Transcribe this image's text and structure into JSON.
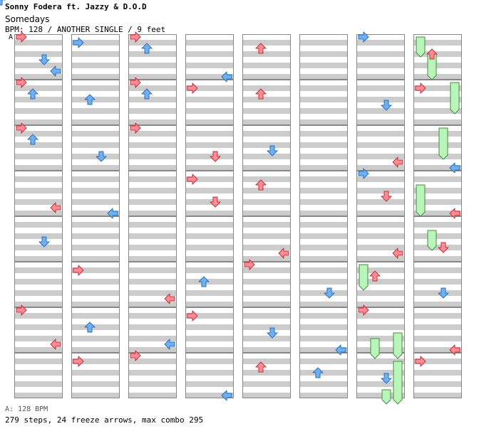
{
  "header": {
    "artist": "Sonny Fodera ft. Jazzy & D.O.D",
    "title": "Somedays",
    "info": "BPM: 128 / ANOTHER SINGLE / 9 feet"
  },
  "bpm_marker": "A",
  "footer": {
    "bpm_legend": "A: 128 BPM",
    "stats": "279 steps, 24 freeze arrows, max combo 295"
  },
  "colors": {
    "page_bg": "#ffffff",
    "row_stripe": "#cccccc",
    "border": "#888888",
    "quarter_note": "#ff8c94",
    "eighth_note": "#6fb1f7",
    "sixteenth_note": "#f3a8f3",
    "freeze": "#b8f5b8"
  },
  "chart": {
    "lanes": [
      "left",
      "down",
      "up",
      "right"
    ],
    "measures_per_column": 8,
    "columns": 8,
    "notes": [
      [
        5,
        0,
        4,
        "r"
      ],
      [
        5,
        1,
        7,
        "r"
      ],
      [
        5,
        2,
        9,
        "r"
      ],
      [
        5,
        3,
        5,
        "b"
      ],
      [
        5,
        4,
        5,
        "b"
      ],
      [
        5,
        5,
        2,
        "b"
      ],
      [
        5,
        6,
        3,
        "b"
      ],
      [
        5,
        7,
        1,
        "b"
      ],
      [
        6,
        0,
        0,
        "b"
      ],
      [
        6,
        1,
        2,
        "b"
      ],
      [
        6,
        2,
        3,
        "r"
      ],
      [
        6,
        3,
        0,
        "b"
      ],
      [
        6,
        3,
        2,
        "r"
      ],
      [
        6,
        4,
        3,
        "r"
      ],
      [
        6,
        5,
        1,
        "r"
      ],
      [
        6,
        6,
        0,
        "r"
      ],
      [
        6,
        7,
        2,
        "b"
      ],
      [
        7,
        0,
        1,
        "r"
      ],
      [
        7,
        1,
        0,
        "r"
      ],
      [
        7,
        2,
        3,
        "b"
      ],
      [
        7,
        3,
        3,
        "r"
      ],
      [
        7,
        4,
        2,
        "r"
      ],
      [
        7,
        5,
        2,
        "b"
      ],
      [
        7,
        6,
        3,
        "r"
      ],
      [
        7,
        7,
        0,
        "r"
      ],
      [
        0,
        0,
        0,
        "r"
      ],
      [
        0,
        0,
        2,
        "b"
      ],
      [
        0,
        1,
        0,
        "r"
      ],
      [
        0,
        1,
        1,
        "b"
      ],
      [
        0,
        2,
        0,
        "r"
      ],
      [
        0,
        3,
        3,
        "r"
      ],
      [
        0,
        6,
        0,
        "r"
      ],
      [
        1,
        0,
        0,
        "b"
      ],
      [
        1,
        1,
        1,
        "b"
      ],
      [
        1,
        2,
        2,
        "b"
      ],
      [
        1,
        3,
        3,
        "b"
      ],
      [
        1,
        5,
        0,
        "r"
      ],
      [
        1,
        6,
        1,
        "b"
      ],
      [
        1,
        7,
        0,
        "r"
      ],
      [
        2,
        0,
        0,
        "r"
      ],
      [
        2,
        0,
        1,
        "b"
      ],
      [
        2,
        1,
        0,
        "r"
      ],
      [
        2,
        1,
        1,
        "b"
      ],
      [
        2,
        2,
        0,
        "r"
      ],
      [
        2,
        5,
        3,
        "r"
      ],
      [
        2,
        6,
        3,
        "b"
      ],
      [
        2,
        7,
        0,
        "r"
      ],
      [
        3,
        0,
        3,
        "b"
      ],
      [
        3,
        1,
        0,
        "r"
      ],
      [
        3,
        2,
        2,
        "r"
      ],
      [
        3,
        3,
        0,
        "r"
      ],
      [
        3,
        3,
        2,
        "r"
      ],
      [
        3,
        5,
        1,
        "b"
      ],
      [
        3,
        6,
        0,
        "r"
      ],
      [
        3,
        7,
        3,
        "b"
      ],
      [
        4,
        0,
        1,
        "r"
      ],
      [
        4,
        1,
        1,
        "r"
      ],
      [
        4,
        2,
        2,
        "b"
      ],
      [
        4,
        3,
        1,
        "r"
      ],
      [
        4,
        4,
        3,
        "r"
      ],
      [
        4,
        5,
        0,
        "r"
      ],
      [
        4,
        6,
        2,
        "b"
      ],
      [
        4,
        7,
        1,
        "r"
      ],
      [
        0,
        0,
        3,
        "b"
      ],
      [
        0,
        2,
        1,
        "b"
      ],
      [
        0,
        4,
        2,
        "b"
      ],
      [
        0,
        6,
        3,
        "r"
      ]
    ],
    "freezes": [
      [
        7,
        0,
        0,
        [
          0,
          3
        ]
      ],
      [
        7,
        0,
        1,
        [
          3,
          7
        ]
      ],
      [
        7,
        1,
        3,
        [
          0,
          5
        ]
      ],
      [
        7,
        2,
        2,
        [
          0,
          5
        ]
      ],
      [
        7,
        3,
        0,
        [
          2,
          7
        ]
      ],
      [
        7,
        4,
        1,
        [
          2,
          5
        ]
      ],
      [
        6,
        5,
        0,
        [
          0,
          4
        ]
      ],
      [
        6,
        6,
        3,
        [
          4,
          8
        ]
      ],
      [
        6,
        7,
        3,
        [
          1,
          8
        ]
      ],
      [
        6,
        6,
        1,
        [
          5,
          8
        ]
      ],
      [
        6,
        7,
        2,
        [
          6,
          8
        ]
      ]
    ]
  }
}
